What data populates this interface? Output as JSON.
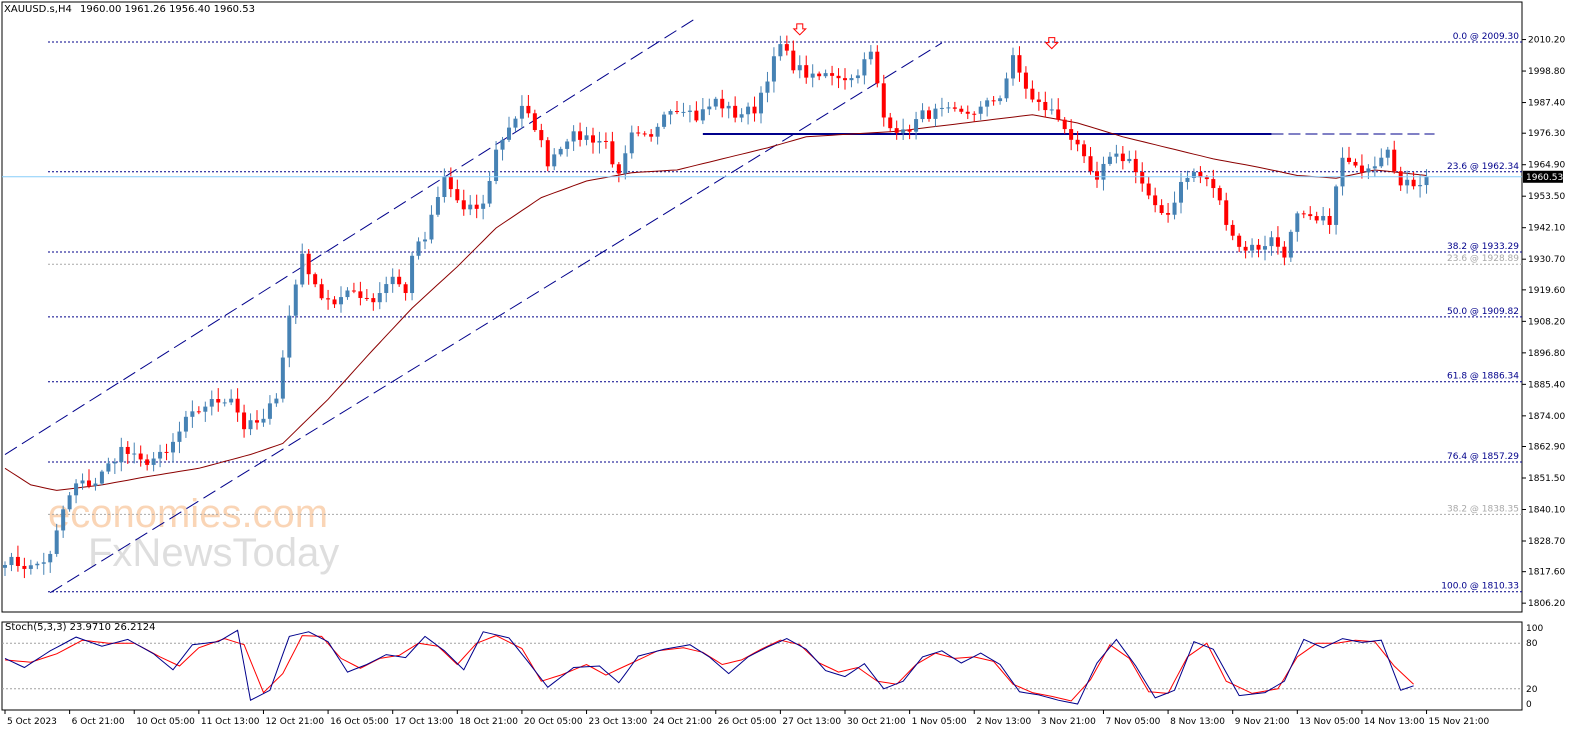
{
  "header": {
    "symbol": "XAUUSD.s,H4",
    "ohlc": "1960.00 1961.26 1956.40 1960.53"
  },
  "watermark": {
    "line1": "economies.com",
    "line2": "FxNewsToday"
  },
  "colors": {
    "bull": "#4682b4",
    "bear": "#ff0000",
    "fib": "#00008b",
    "fib_alt": "#a9a9a9",
    "ma": "#8b0000",
    "channel": "#00008b",
    "resistance": "#00008b",
    "stoch_main": "#00008b",
    "stoch_signal": "#ff0000",
    "price_line": "#87cefa"
  },
  "chart_data": {
    "type": "candlestick",
    "price_axis": {
      "min": 1803.0,
      "max": 2018.0,
      "ticks": [
        2010.2,
        1998.8,
        1987.4,
        1976.3,
        1964.9,
        1953.5,
        1942.1,
        1930.7,
        1919.6,
        1908.2,
        1896.8,
        1885.4,
        1874.0,
        1862.9,
        1851.5,
        1840.1,
        1828.7,
        1817.6,
        1806.2
      ],
      "tick_labels": [
        "2010.20",
        "1998.80",
        "1987.40",
        "1976.30",
        "1964.90",
        "1953.50",
        "1942.10",
        "1930.70",
        "1919.60",
        "1908.20",
        "1896.80",
        "1885.40",
        "1874.00",
        "1862.90",
        "1851.50",
        "1840.10",
        "1828.70",
        "1817.60",
        "1806.20"
      ],
      "current_price": 1960.53,
      "current_label": "1960.53"
    },
    "time_axis": {
      "bar_count": 234,
      "labels": [
        {
          "i": 0,
          "text": "5 Oct 2023"
        },
        {
          "i": 10,
          "text": "6 Oct 21:00"
        },
        {
          "i": 20,
          "text": "10 Oct 05:00"
        },
        {
          "i": 30,
          "text": "11 Oct 13:00"
        },
        {
          "i": 40,
          "text": "12 Oct 21:00"
        },
        {
          "i": 50,
          "text": "16 Oct 05:00"
        },
        {
          "i": 60,
          "text": "17 Oct 13:00"
        },
        {
          "i": 70,
          "text": "18 Oct 21:00"
        },
        {
          "i": 80,
          "text": "20 Oct 05:00"
        },
        {
          "i": 90,
          "text": "23 Oct 13:00"
        },
        {
          "i": 100,
          "text": "24 Oct 21:00"
        },
        {
          "i": 110,
          "text": "26 Oct 05:00"
        },
        {
          "i": 120,
          "text": "27 Oct 13:00"
        },
        {
          "i": 130,
          "text": "30 Oct 21:00"
        },
        {
          "i": 140,
          "text": "1 Nov 05:00"
        },
        {
          "i": 150,
          "text": "2 Nov 13:00"
        },
        {
          "i": 160,
          "text": "3 Nov 21:00"
        },
        {
          "i": 170,
          "text": "7 Nov 05:00"
        },
        {
          "i": 180,
          "text": "8 Nov 13:00"
        },
        {
          "i": 190,
          "text": "9 Nov 21:00"
        },
        {
          "i": 200,
          "text": "13 Nov 05:00"
        },
        {
          "i": 210,
          "text": "14 Nov 13:00"
        },
        {
          "i": 220,
          "text": "15 Nov 21:00"
        }
      ]
    },
    "price_anchors": [
      [
        0,
        1822
      ],
      [
        4,
        1819
      ],
      [
        7,
        1823
      ],
      [
        9,
        1840
      ],
      [
        11,
        1849
      ],
      [
        14,
        1850
      ],
      [
        18,
        1862
      ],
      [
        21,
        1857
      ],
      [
        25,
        1860
      ],
      [
        28,
        1872
      ],
      [
        31,
        1878
      ],
      [
        35,
        1881
      ],
      [
        37,
        1870
      ],
      [
        40,
        1872
      ],
      [
        42,
        1882
      ],
      [
        44,
        1910
      ],
      [
        46,
        1933
      ],
      [
        48,
        1920
      ],
      [
        51,
        1915
      ],
      [
        54,
        1919
      ],
      [
        57,
        1916
      ],
      [
        60,
        1925
      ],
      [
        62,
        1918
      ],
      [
        63,
        1933
      ],
      [
        65,
        1938
      ],
      [
        68,
        1960
      ],
      [
        71,
        1948
      ],
      [
        74,
        1950
      ],
      [
        76,
        1970
      ],
      [
        78,
        1979
      ],
      [
        80,
        1985
      ],
      [
        82,
        1979
      ],
      [
        84,
        1966
      ],
      [
        87,
        1975
      ],
      [
        90,
        1975
      ],
      [
        93,
        1973
      ],
      [
        95,
        1960
      ],
      [
        97,
        1975
      ],
      [
        100,
        1974
      ],
      [
        102,
        1985
      ],
      [
        105,
        1986
      ],
      [
        107,
        1982
      ],
      [
        110,
        1988
      ],
      [
        113,
        1983
      ],
      [
        116,
        1985
      ],
      [
        118,
        1997
      ],
      [
        120,
        2008
      ],
      [
        122,
        2001
      ],
      [
        125,
        1996
      ],
      [
        128,
        1998
      ],
      [
        131,
        1996
      ],
      [
        134,
        2005
      ],
      [
        136,
        1982
      ],
      [
        139,
        1976
      ],
      [
        142,
        1983
      ],
      [
        145,
        1984
      ],
      [
        148,
        1983
      ],
      [
        151,
        1985
      ],
      [
        154,
        1990
      ],
      [
        156,
        2003
      ],
      [
        159,
        1988
      ],
      [
        162,
        1984
      ],
      [
        164,
        1979
      ],
      [
        167,
        1966
      ],
      [
        169,
        1958
      ],
      [
        171,
        1969
      ],
      [
        174,
        1967
      ],
      [
        177,
        1952
      ],
      [
        180,
        1947
      ],
      [
        182,
        1958
      ],
      [
        184,
        1962
      ],
      [
        187,
        1957
      ],
      [
        189,
        1945
      ],
      [
        191,
        1935
      ],
      [
        194,
        1935
      ],
      [
        196,
        1938
      ],
      [
        198,
        1933
      ],
      [
        200,
        1946
      ],
      [
        203,
        1944
      ],
      [
        205,
        1945
      ],
      [
        207,
        1967
      ],
      [
        209,
        1963
      ],
      [
        212,
        1966
      ],
      [
        214,
        1972
      ],
      [
        216,
        1957
      ],
      [
        219,
        1959
      ],
      [
        220,
        1960.53
      ]
    ],
    "moving_average": {
      "anchors": [
        [
          0,
          1855
        ],
        [
          4,
          1849
        ],
        [
          8,
          1847
        ],
        [
          15,
          1849
        ],
        [
          22,
          1852
        ],
        [
          30,
          1855
        ],
        [
          38,
          1860
        ],
        [
          43,
          1864
        ],
        [
          50,
          1880
        ],
        [
          57,
          1898
        ],
        [
          63,
          1913
        ],
        [
          70,
          1928
        ],
        [
          76,
          1942
        ],
        [
          83,
          1953
        ],
        [
          90,
          1959
        ],
        [
          97,
          1962
        ],
        [
          104,
          1963
        ],
        [
          111,
          1967
        ],
        [
          118,
          1971
        ],
        [
          124,
          1975
        ],
        [
          131,
          1976
        ],
        [
          138,
          1977
        ],
        [
          145,
          1979
        ],
        [
          152,
          1981
        ],
        [
          159,
          1983
        ],
        [
          166,
          1980
        ],
        [
          173,
          1975
        ],
        [
          180,
          1971
        ],
        [
          187,
          1967
        ],
        [
          194,
          1964
        ],
        [
          200,
          1961
        ],
        [
          206,
          1960
        ],
        [
          212,
          1963
        ],
        [
          220,
          1961
        ]
      ]
    },
    "fibonacci_levels": [
      {
        "price": 2009.3,
        "label": "0.0 @ 2009.30",
        "style": "primary"
      },
      {
        "price": 1962.34,
        "label": "23.6 @ 1962.34",
        "style": "primary"
      },
      {
        "price": 1933.29,
        "label": "38.2 @ 1933.29",
        "style": "primary"
      },
      {
        "price": 1928.89,
        "label": "23.6 @ 1928.89",
        "style": "secondary"
      },
      {
        "price": 1909.82,
        "label": "50.0 @ 1909.82",
        "style": "primary"
      },
      {
        "price": 1886.34,
        "label": "61.8 @ 1886.34",
        "style": "primary"
      },
      {
        "price": 1857.29,
        "label": "76.4 @ 1857.29",
        "style": "primary"
      },
      {
        "price": 1838.35,
        "label": "38.2 @ 1838.35",
        "style": "secondary"
      },
      {
        "price": 1810.33,
        "label": "100.0 @ 1810.33",
        "style": "primary"
      }
    ],
    "channel_lines": [
      {
        "from": [
          0,
          1860
        ],
        "to": [
          107,
          2018
        ]
      },
      {
        "from": [
          7,
          1810
        ],
        "to": [
          145,
          2009
        ]
      }
    ],
    "resistance": {
      "price": 1976.0,
      "solid_from": 108,
      "solid_to": 196,
      "dash_to": 220
    },
    "arrows": [
      {
        "i": 123,
        "price": 2013
      },
      {
        "i": 162,
        "price": 2008
      }
    ],
    "stochastic": {
      "label": "Stoch(5,3,3) 23.9710 26.2124",
      "levels": [
        80,
        20
      ],
      "ticks": [
        100,
        80,
        20,
        0
      ],
      "tick_labels": [
        "100",
        "80",
        "20",
        "0"
      ],
      "main_anchors": [
        [
          0,
          60
        ],
        [
          3,
          48
        ],
        [
          7,
          70
        ],
        [
          11,
          88
        ],
        [
          15,
          76
        ],
        [
          19,
          85
        ],
        [
          23,
          66
        ],
        [
          26,
          45
        ],
        [
          29,
          78
        ],
        [
          33,
          82
        ],
        [
          36,
          97
        ],
        [
          38,
          5
        ],
        [
          41,
          18
        ],
        [
          44,
          89
        ],
        [
          47,
          95
        ],
        [
          50,
          82
        ],
        [
          53,
          42
        ],
        [
          56,
          52
        ],
        [
          59,
          65
        ],
        [
          62,
          61
        ],
        [
          65,
          89
        ],
        [
          68,
          70
        ],
        [
          71,
          45
        ],
        [
          74,
          95
        ],
        [
          78,
          87
        ],
        [
          81,
          55
        ],
        [
          84,
          22
        ],
        [
          88,
          48
        ],
        [
          92,
          50
        ],
        [
          95,
          28
        ],
        [
          98,
          63
        ],
        [
          102,
          72
        ],
        [
          106,
          78
        ],
        [
          109,
          62
        ],
        [
          112,
          40
        ],
        [
          115,
          62
        ],
        [
          118,
          75
        ],
        [
          121,
          86
        ],
        [
          124,
          72
        ],
        [
          127,
          44
        ],
        [
          130,
          36
        ],
        [
          133,
          53
        ],
        [
          136,
          20
        ],
        [
          139,
          30
        ],
        [
          142,
          62
        ],
        [
          145,
          70
        ],
        [
          148,
          54
        ],
        [
          151,
          67
        ],
        [
          154,
          52
        ],
        [
          157,
          16
        ],
        [
          160,
          12
        ],
        [
          163,
          5
        ],
        [
          166,
          0
        ],
        [
          169,
          54
        ],
        [
          172,
          85
        ],
        [
          175,
          50
        ],
        [
          178,
          8
        ],
        [
          181,
          18
        ],
        [
          184,
          82
        ],
        [
          187,
          72
        ],
        [
          191,
          11
        ],
        [
          195,
          15
        ],
        [
          198,
          30
        ],
        [
          201,
          85
        ],
        [
          204,
          74
        ],
        [
          207,
          86
        ],
        [
          210,
          81
        ],
        [
          213,
          84
        ],
        [
          216,
          18
        ],
        [
          218,
          24
        ]
      ],
      "signal_anchors": [
        [
          0,
          58
        ],
        [
          4,
          55
        ],
        [
          8,
          66
        ],
        [
          12,
          84
        ],
        [
          16,
          80
        ],
        [
          20,
          80
        ],
        [
          24,
          62
        ],
        [
          27,
          50
        ],
        [
          30,
          74
        ],
        [
          34,
          86
        ],
        [
          37,
          78
        ],
        [
          40,
          15
        ],
        [
          43,
          40
        ],
        [
          46,
          90
        ],
        [
          49,
          89
        ],
        [
          52,
          60
        ],
        [
          55,
          47
        ],
        [
          58,
          60
        ],
        [
          61,
          64
        ],
        [
          64,
          80
        ],
        [
          67,
          76
        ],
        [
          70,
          52
        ],
        [
          73,
          80
        ],
        [
          76,
          90
        ],
        [
          80,
          73
        ],
        [
          83,
          30
        ],
        [
          86,
          38
        ],
        [
          90,
          52
        ],
        [
          93,
          38
        ],
        [
          97,
          54
        ],
        [
          101,
          70
        ],
        [
          105,
          74
        ],
        [
          108,
          68
        ],
        [
          111,
          52
        ],
        [
          114,
          58
        ],
        [
          117,
          72
        ],
        [
          120,
          84
        ],
        [
          123,
          78
        ],
        [
          126,
          54
        ],
        [
          129,
          42
        ],
        [
          132,
          48
        ],
        [
          135,
          30
        ],
        [
          138,
          26
        ],
        [
          141,
          52
        ],
        [
          144,
          67
        ],
        [
          147,
          60
        ],
        [
          150,
          62
        ],
        [
          153,
          56
        ],
        [
          156,
          26
        ],
        [
          159,
          15
        ],
        [
          162,
          10
        ],
        [
          165,
          4
        ],
        [
          168,
          32
        ],
        [
          171,
          78
        ],
        [
          174,
          60
        ],
        [
          177,
          16
        ],
        [
          180,
          14
        ],
        [
          183,
          62
        ],
        [
          186,
          80
        ],
        [
          189,
          30
        ],
        [
          193,
          14
        ],
        [
          197,
          20
        ],
        [
          200,
          62
        ],
        [
          203,
          80
        ],
        [
          206,
          80
        ],
        [
          209,
          84
        ],
        [
          212,
          82
        ],
        [
          215,
          50
        ],
        [
          218,
          26
        ]
      ]
    }
  }
}
